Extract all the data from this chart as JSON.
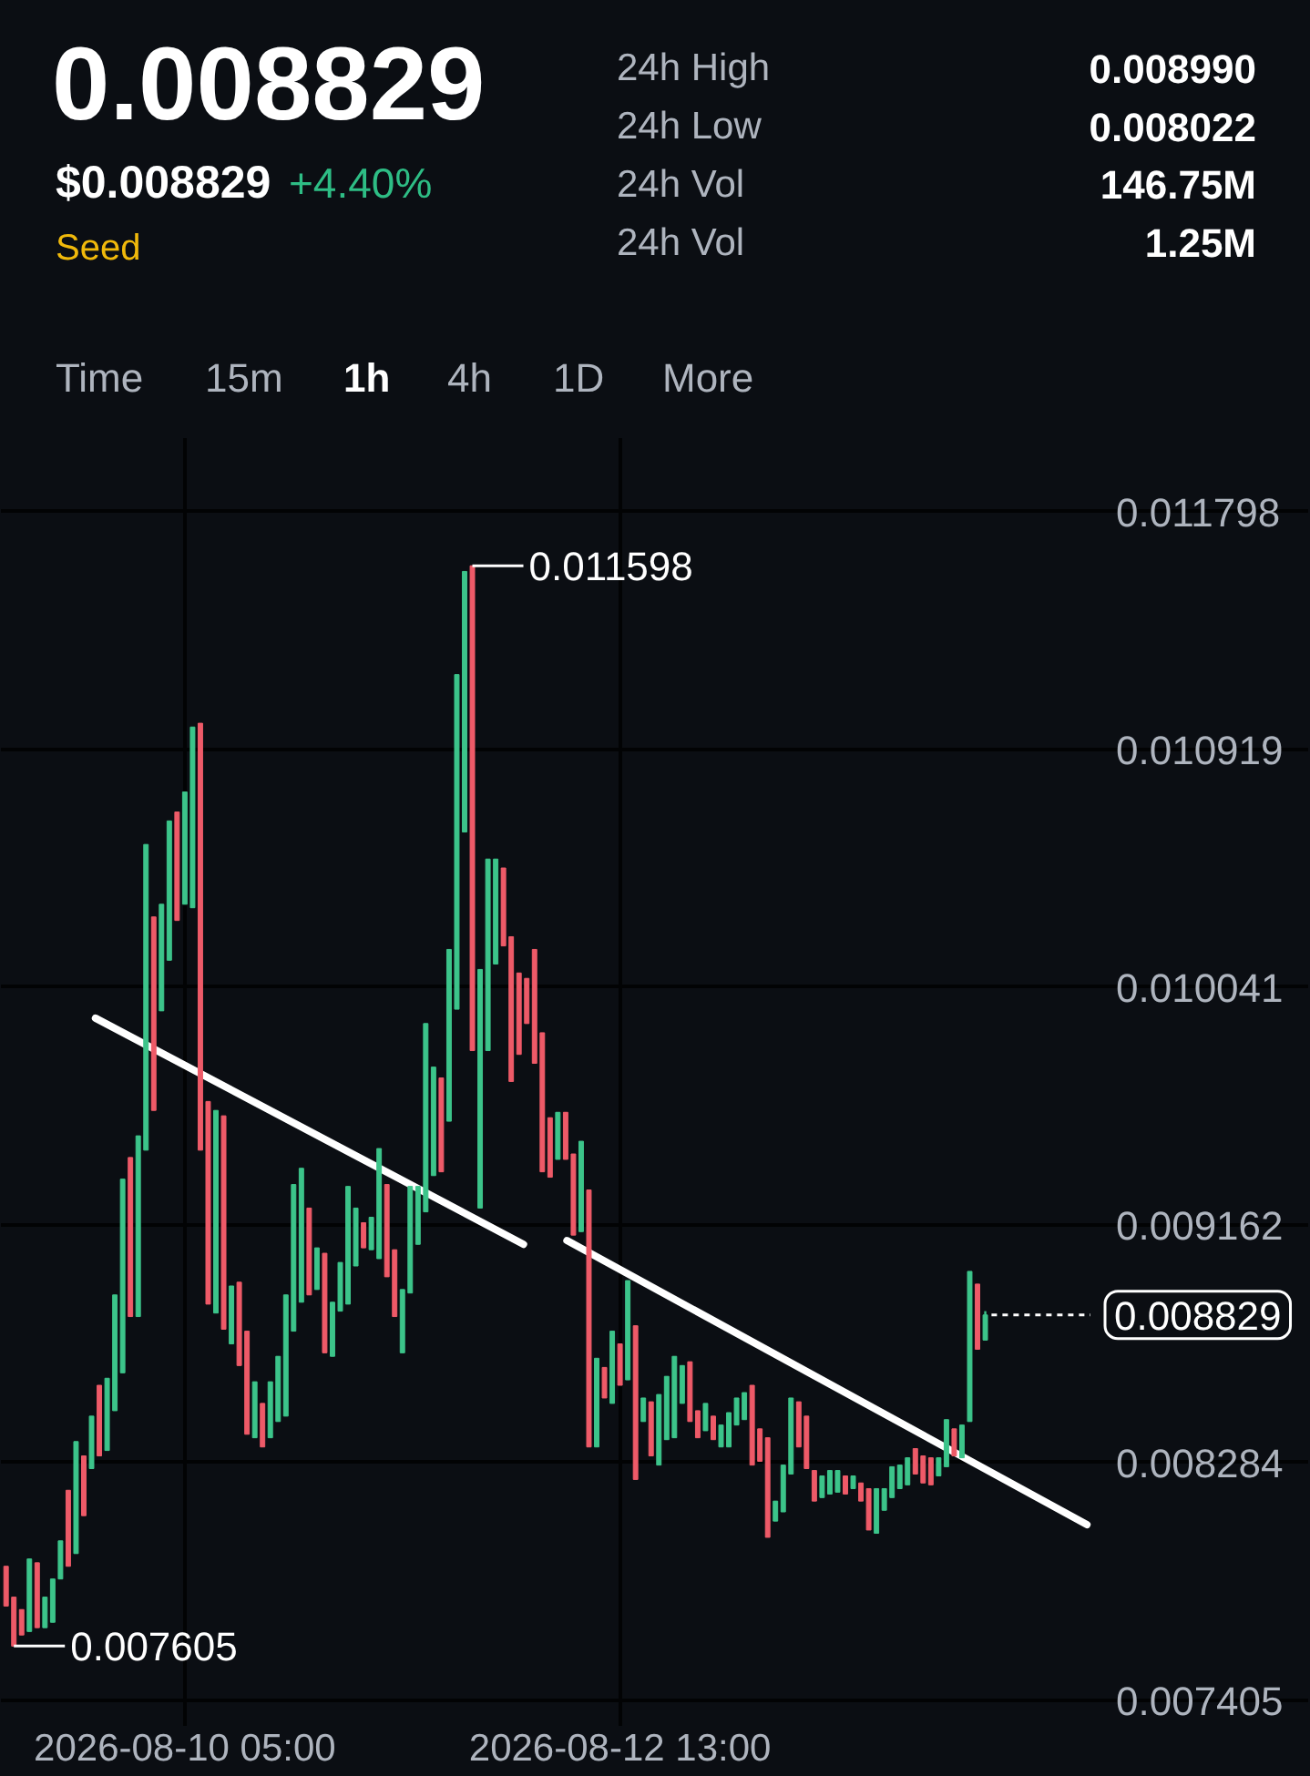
{
  "chart_data": {
    "type": "candlestick",
    "title": "0.008829",
    "annotations": [
      "$0.008829",
      "+4.40%",
      "Seed",
      "24h High",
      "0.008990",
      "24h Low",
      "0.008022",
      "24h Vol",
      "146.75M",
      "24h Vol",
      "1.25M",
      "Time",
      "15m",
      "1h",
      "4h",
      "1D",
      "More",
      {
        "text": "0.011598",
        "x": "2026-08-11T18:00",
        "y": 0.011598
      },
      {
        "text": "0.007605",
        "x": "2026-08-09T07:00",
        "y": 0.007605
      }
    ],
    "x": [
      "2026-08-09T06:00",
      "2026-08-09T07:00",
      "2026-08-09T08:00",
      "2026-08-09T09:00",
      "2026-08-09T10:00",
      "2026-08-09T11:00",
      "2026-08-09T12:00",
      "2026-08-09T13:00",
      "2026-08-09T14:00",
      "2026-08-09T15:00",
      "2026-08-09T16:00",
      "2026-08-09T17:00",
      "2026-08-09T18:00",
      "2026-08-09T19:00",
      "2026-08-09T20:00",
      "2026-08-09T21:00",
      "2026-08-09T22:00",
      "2026-08-09T23:00",
      "2026-08-10T00:00",
      "2026-08-10T01:00",
      "2026-08-10T02:00",
      "2026-08-10T03:00",
      "2026-08-10T04:00",
      "2026-08-10T05:00",
      "2026-08-10T06:00",
      "2026-08-10T07:00",
      "2026-08-10T08:00",
      "2026-08-10T09:00",
      "2026-08-10T10:00",
      "2026-08-10T11:00",
      "2026-08-10T12:00",
      "2026-08-10T13:00",
      "2026-08-10T14:00",
      "2026-08-10T15:00",
      "2026-08-10T16:00",
      "2026-08-10T17:00",
      "2026-08-10T18:00",
      "2026-08-10T19:00",
      "2026-08-10T20:00",
      "2026-08-10T21:00",
      "2026-08-10T22:00",
      "2026-08-10T23:00",
      "2026-08-11T00:00",
      "2026-08-11T01:00",
      "2026-08-11T02:00",
      "2026-08-11T03:00",
      "2026-08-11T04:00",
      "2026-08-11T05:00",
      "2026-08-11T06:00",
      "2026-08-11T07:00",
      "2026-08-11T08:00",
      "2026-08-11T09:00",
      "2026-08-11T10:00",
      "2026-08-11T11:00",
      "2026-08-11T12:00",
      "2026-08-11T13:00",
      "2026-08-11T14:00",
      "2026-08-11T15:00",
      "2026-08-11T16:00",
      "2026-08-11T17:00",
      "2026-08-11T18:00",
      "2026-08-11T19:00",
      "2026-08-11T20:00",
      "2026-08-11T21:00",
      "2026-08-11T22:00",
      "2026-08-11T23:00",
      "2026-08-12T00:00",
      "2026-08-12T01:00",
      "2026-08-12T02:00",
      "2026-08-12T03:00",
      "2026-08-12T04:00",
      "2026-08-12T05:00",
      "2026-08-12T06:00",
      "2026-08-12T07:00",
      "2026-08-12T08:00",
      "2026-08-12T09:00",
      "2026-08-12T10:00",
      "2026-08-12T11:00",
      "2026-08-12T12:00",
      "2026-08-12T13:00",
      "2026-08-12T14:00",
      "2026-08-12T15:00",
      "2026-08-12T16:00",
      "2026-08-12T17:00",
      "2026-08-12T18:00",
      "2026-08-12T19:00",
      "2026-08-12T20:00",
      "2026-08-12T21:00",
      "2026-08-12T22:00",
      "2026-08-12T23:00",
      "2026-08-13T00:00",
      "2026-08-13T01:00",
      "2026-08-13T02:00",
      "2026-08-13T03:00",
      "2026-08-13T04:00",
      "2026-08-13T05:00",
      "2026-08-13T06:00",
      "2026-08-13T07:00",
      "2026-08-13T08:00",
      "2026-08-13T09:00",
      "2026-08-13T10:00",
      "2026-08-13T11:00",
      "2026-08-13T12:00",
      "2026-08-13T13:00",
      "2026-08-13T14:00",
      "2026-08-13T15:00",
      "2026-08-13T16:00",
      "2026-08-13T17:00",
      "2026-08-13T18:00",
      "2026-08-13T19:00",
      "2026-08-13T20:00",
      "2026-08-13T21:00",
      "2026-08-13T22:00",
      "2026-08-13T23:00",
      "2026-08-14T00:00",
      "2026-08-14T01:00",
      "2026-08-14T02:00",
      "2026-08-14T03:00",
      "2026-08-14T04:00",
      "2026-08-14T05:00",
      "2026-08-14T06:00",
      "2026-08-14T07:00",
      "2026-08-14T08:00",
      "2026-08-14T09:00",
      "2026-08-14T10:00",
      "2026-08-14T11:00",
      "2026-08-14T12:00"
    ],
    "ohlc": [
      [
        0.0079,
        0.0079,
        0.007753,
        0.007753
      ],
      [
        0.007786,
        0.007786,
        0.007605,
        0.007605
      ],
      [
        0.00774,
        0.00774,
        0.007646,
        0.007646
      ],
      [
        0.007659,
        0.007927,
        0.007659,
        0.007927
      ],
      [
        0.007913,
        0.007913,
        0.007673,
        0.007673
      ],
      [
        0.007673,
        0.007786,
        0.007673,
        0.007786
      ],
      [
        0.007693,
        0.007853,
        0.007693,
        0.007853
      ],
      [
        0.007853,
        0.007994,
        0.007853,
        0.007994
      ],
      [
        0.008181,
        0.008181,
        0.0079,
        0.0079
      ],
      [
        0.007947,
        0.008361,
        0.007947,
        0.008361
      ],
      [
        0.008308,
        0.008308,
        0.008087,
        0.008087
      ],
      [
        0.008261,
        0.008455,
        0.008261,
        0.008455
      ],
      [
        0.008569,
        0.008569,
        0.008308,
        0.008308
      ],
      [
        0.008328,
        0.008595,
        0.008328,
        0.008595
      ],
      [
        0.008475,
        0.008903,
        0.008475,
        0.008903
      ],
      [
        0.008615,
        0.009331,
        0.008615,
        0.009331
      ],
      [
        0.009411,
        0.009411,
        0.008823,
        0.008823
      ],
      [
        0.008823,
        0.009491,
        0.008823,
        0.009491
      ],
      [
        0.009438,
        0.010568,
        0.009438,
        0.010568
      ],
      [
        0.0103,
        0.0103,
        0.009585,
        0.009585
      ],
      [
        0.009953,
        0.010347,
        0.009953,
        0.010347
      ],
      [
        0.01014,
        0.010655,
        0.01014,
        0.010655
      ],
      [
        0.010688,
        0.010688,
        0.010287,
        0.010287
      ],
      [
        0.010347,
        0.010762,
        0.010347,
        0.010762
      ],
      [
        0.010334,
        0.011002,
        0.010334,
        0.011002
      ],
      [
        0.011016,
        0.011016,
        0.009438,
        0.009438
      ],
      [
        0.009618,
        0.009618,
        0.008869,
        0.008869
      ],
      [
        0.008836,
        0.009585,
        0.008836,
        0.009585
      ],
      [
        0.009565,
        0.009565,
        0.008776,
        0.008776
      ],
      [
        0.008722,
        0.008936,
        0.008722,
        0.008936
      ],
      [
        0.00895,
        0.00895,
        0.008642,
        0.008642
      ],
      [
        0.008769,
        0.008769,
        0.008388,
        0.008388
      ],
      [
        0.008375,
        0.008582,
        0.008375,
        0.008582
      ],
      [
        0.008502,
        0.008502,
        0.008341,
        0.008341
      ],
      [
        0.008375,
        0.008582,
        0.008375,
        0.008582
      ],
      [
        0.008435,
        0.008676,
        0.008435,
        0.008676
      ],
      [
        0.008455,
        0.008903,
        0.008455,
        0.008903
      ],
      [
        0.008769,
        0.009311,
        0.008769,
        0.009311
      ],
      [
        0.008876,
        0.009371,
        0.008876,
        0.009371
      ],
      [
        0.009224,
        0.009224,
        0.008903,
        0.008903
      ],
      [
        0.008923,
        0.009077,
        0.008923,
        0.009077
      ],
      [
        0.009057,
        0.009057,
        0.008689,
        0.008689
      ],
      [
        0.008676,
        0.008876,
        0.008676,
        0.008876
      ],
      [
        0.008843,
        0.009023,
        0.008843,
        0.009023
      ],
      [
        0.008869,
        0.009304,
        0.008869,
        0.009304
      ],
      [
        0.00901,
        0.009224,
        0.00901,
        0.009224
      ],
      [
        0.00917,
        0.00917,
        0.009077,
        0.009077
      ],
      [
        0.00907,
        0.00919,
        0.00907,
        0.00919
      ],
      [
        0.009037,
        0.009444,
        0.009037,
        0.009444
      ],
      [
        0.009311,
        0.009311,
        0.00897,
        0.00897
      ],
      [
        0.00907,
        0.00907,
        0.008823,
        0.008823
      ],
      [
        0.008689,
        0.008923,
        0.008689,
        0.008923
      ],
      [
        0.00891,
        0.009304,
        0.00891,
        0.009304
      ],
      [
        0.00909,
        0.009304,
        0.00909,
        0.009304
      ],
      [
        0.00921,
        0.009906,
        0.00921,
        0.009906
      ],
      [
        0.009344,
        0.009745,
        0.009344,
        0.009745
      ],
      [
        0.009705,
        0.009705,
        0.009358,
        0.009358
      ],
      [
        0.009545,
        0.01018,
        0.009545,
        0.01018
      ],
      [
        0.009959,
        0.011196,
        0.009959,
        0.011196
      ],
      [
        0.010614,
        0.011577,
        0.010614,
        0.011577
      ],
      [
        0.011598,
        0.011598,
        0.009806,
        0.009806
      ],
      [
        0.009224,
        0.010106,
        0.009224,
        0.010106
      ],
      [
        0.009806,
        0.010514,
        0.009806,
        0.010514
      ],
      [
        0.010126,
        0.010514,
        0.010126,
        0.010514
      ],
      [
        0.010481,
        0.010481,
        0.010193,
        0.010193
      ],
      [
        0.010227,
        0.010227,
        0.009692,
        0.009692
      ],
      [
        0.010093,
        0.010093,
        0.009792,
        0.009792
      ],
      [
        0.010073,
        0.010073,
        0.009906,
        0.009906
      ],
      [
        0.01018,
        0.01018,
        0.009759,
        0.009759
      ],
      [
        0.009872,
        0.009872,
        0.009358,
        0.009358
      ],
      [
        0.009558,
        0.009558,
        0.009338,
        0.009338
      ],
      [
        0.009404,
        0.009578,
        0.009404,
        0.009578
      ],
      [
        0.009578,
        0.009578,
        0.009404,
        0.009404
      ],
      [
        0.009424,
        0.009424,
        0.009124,
        0.009124
      ],
      [
        0.009137,
        0.009471,
        0.009137,
        0.009471
      ],
      [
        0.009291,
        0.009291,
        0.008341,
        0.008341
      ],
      [
        0.008341,
        0.008669,
        0.008341,
        0.008669
      ],
      [
        0.008635,
        0.008635,
        0.008522,
        0.008522
      ],
      [
        0.008502,
        0.008769,
        0.008502,
        0.008769
      ],
      [
        0.008722,
        0.008722,
        0.008569,
        0.008569
      ],
      [
        0.008589,
        0.008956,
        0.008589,
        0.008956
      ],
      [
        0.008789,
        0.008789,
        0.008221,
        0.008221
      ],
      [
        0.008435,
        0.008522,
        0.008435,
        0.008522
      ],
      [
        0.008508,
        0.008508,
        0.008308,
        0.008308
      ],
      [
        0.008274,
        0.008535,
        0.008274,
        0.008535
      ],
      [
        0.008368,
        0.008602,
        0.008368,
        0.008602
      ],
      [
        0.008375,
        0.008676,
        0.008375,
        0.008676
      ],
      [
        0.008502,
        0.008642,
        0.008502,
        0.008642
      ],
      [
        0.008656,
        0.008656,
        0.008435,
        0.008435
      ],
      [
        0.008475,
        0.008475,
        0.008375,
        0.008375
      ],
      [
        0.008401,
        0.008502,
        0.008401,
        0.008502
      ],
      [
        0.008455,
        0.008455,
        0.008368,
        0.008368
      ],
      [
        0.008341,
        0.008422,
        0.008341,
        0.008422
      ],
      [
        0.008341,
        0.008468,
        0.008341,
        0.008468
      ],
      [
        0.008422,
        0.008522,
        0.008422,
        0.008522
      ],
      [
        0.008442,
        0.008542,
        0.008442,
        0.008542
      ],
      [
        0.008569,
        0.008569,
        0.008274,
        0.008274
      ],
      [
        0.008408,
        0.008408,
        0.008288,
        0.008288
      ],
      [
        0.008375,
        0.008375,
        0.008007,
        0.008007
      ],
      [
        0.008067,
        0.008141,
        0.008067,
        0.008141
      ],
      [
        0.008101,
        0.008274,
        0.008101,
        0.008274
      ],
      [
        0.008241,
        0.008522,
        0.008241,
        0.008522
      ],
      [
        0.008508,
        0.008508,
        0.008341,
        0.008341
      ],
      [
        0.008455,
        0.008455,
        0.008261,
        0.008261
      ],
      [
        0.008254,
        0.008254,
        0.008141,
        0.008141
      ],
      [
        0.008154,
        0.008234,
        0.008154,
        0.008234
      ],
      [
        0.008167,
        0.008254,
        0.008167,
        0.008254
      ],
      [
        0.008174,
        0.008254,
        0.008174,
        0.008254
      ],
      [
        0.008234,
        0.008234,
        0.008167,
        0.008167
      ],
      [
        0.008187,
        0.008234,
        0.008187,
        0.008234
      ],
      [
        0.008208,
        0.008208,
        0.008141,
        0.008141
      ],
      [
        0.008187,
        0.008187,
        0.008034,
        0.008034
      ],
      [
        0.008022,
        0.008187,
        0.008022,
        0.008187
      ],
      [
        0.008107,
        0.008187,
        0.008107,
        0.008187
      ],
      [
        0.008154,
        0.008268,
        0.008154,
        0.008268
      ],
      [
        0.008187,
        0.008274,
        0.008187,
        0.008274
      ],
      [
        0.008201,
        0.008301,
        0.008201,
        0.008301
      ],
      [
        0.008335,
        0.008335,
        0.008241,
        0.008241
      ],
      [
        0.008308,
        0.008308,
        0.008208,
        0.008208
      ],
      [
        0.008301,
        0.008301,
        0.008201,
        0.008201
      ],
      [
        0.008234,
        0.008301,
        0.008234,
        0.008301
      ],
      [
        0.008268,
        0.008442,
        0.008268,
        0.008442
      ],
      [
        0.008408,
        0.008408,
        0.008308,
        0.008308
      ],
      [
        0.008301,
        0.008422,
        0.008301,
        0.008422
      ],
      [
        0.008435,
        0.00899,
        0.008435,
        0.00899
      ],
      [
        0.008943,
        0.008943,
        0.008702,
        0.008702
      ],
      [
        0.008736,
        0.008843,
        0.008736,
        0.008829
      ]
    ],
    "colors": [
      "#ee5a68",
      "#ee5a68",
      "#ee5a68",
      "#3cc48a",
      "#ee5a68",
      "#3cc48a",
      "#3cc48a",
      "#3cc48a",
      "#ee5a68",
      "#3cc48a",
      "#ee5a68",
      "#3cc48a",
      "#ee5a68",
      "#3cc48a",
      "#3cc48a",
      "#3cc48a",
      "#ee5a68",
      "#3cc48a",
      "#3cc48a",
      "#ee5a68",
      "#3cc48a",
      "#3cc48a",
      "#ee5a68",
      "#3cc48a",
      "#3cc48a",
      "#ee5a68",
      "#ee5a68",
      "#3cc48a",
      "#ee5a68",
      "#3cc48a",
      "#ee5a68",
      "#ee5a68",
      "#3cc48a",
      "#ee5a68",
      "#3cc48a",
      "#3cc48a",
      "#3cc48a",
      "#3cc48a",
      "#3cc48a",
      "#ee5a68",
      "#3cc48a",
      "#ee5a68",
      "#3cc48a",
      "#3cc48a",
      "#3cc48a",
      "#3cc48a",
      "#ee5a68",
      "#3cc48a",
      "#3cc48a",
      "#ee5a68",
      "#ee5a68",
      "#3cc48a",
      "#3cc48a",
      "#3cc48a",
      "#3cc48a",
      "#3cc48a",
      "#ee5a68",
      "#3cc48a",
      "#3cc48a",
      "#3cc48a",
      "#ee5a68",
      "#3cc48a",
      "#3cc48a",
      "#3cc48a",
      "#ee5a68",
      "#ee5a68",
      "#ee5a68",
      "#ee5a68",
      "#ee5a68",
      "#ee5a68",
      "#ee5a68",
      "#3cc48a",
      "#ee5a68",
      "#ee5a68",
      "#3cc48a",
      "#ee5a68",
      "#3cc48a",
      "#ee5a68",
      "#3cc48a",
      "#ee5a68",
      "#3cc48a",
      "#ee5a68",
      "#3cc48a",
      "#ee5a68",
      "#3cc48a",
      "#3cc48a",
      "#3cc48a",
      "#3cc48a",
      "#ee5a68",
      "#ee5a68",
      "#3cc48a",
      "#ee5a68",
      "#3cc48a",
      "#3cc48a",
      "#3cc48a",
      "#3cc48a",
      "#ee5a68",
      "#ee5a68",
      "#ee5a68",
      "#3cc48a",
      "#3cc48a",
      "#3cc48a",
      "#ee5a68",
      "#ee5a68",
      "#ee5a68",
      "#3cc48a",
      "#3cc48a",
      "#3cc48a",
      "#ee5a68",
      "#3cc48a",
      "#ee5a68",
      "#ee5a68",
      "#3cc48a",
      "#3cc48a",
      "#3cc48a",
      "#3cc48a",
      "#3cc48a",
      "#ee5a68",
      "#ee5a68",
      "#ee5a68",
      "#3cc48a",
      "#3cc48a",
      "#ee5a68",
      "#3cc48a",
      "#3cc48a",
      "#ee5a68",
      "#3cc48a"
    ],
    "series": [
      {
        "type": "line",
        "color": "#ffffff",
        "x": [
          "2026-08-09T17:30",
          "2026-08-12T00:35"
        ],
        "values": [
          0.009926,
          0.00909
        ]
      },
      {
        "type": "line",
        "color": "#ffffff",
        "x": [
          "2026-08-12T06:10",
          "2026-08-15T01:05"
        ],
        "values": [
          0.009104,
          0.008054
        ]
      }
    ],
    "xlim": [
      "2026-08-09T05:20",
      "2026-08-16T05:40"
    ],
    "xticks": [
      {
        "value": "2026-08-10T05:00",
        "label": "2026-08-10 05:00"
      },
      {
        "value": "2026-08-12T13:00",
        "label": "2026-08-12 13:00"
      }
    ],
    "ylim": [
      0.00731,
      0.01207
    ],
    "yticks": [
      0.011798,
      0.010919,
      0.010041,
      0.009162,
      0.008284,
      0.007405
    ],
    "grid": true,
    "ref_lines": [
      {
        "axis": "y",
        "value": 0.008829,
        "label": "0.008829",
        "line_style": "dotted",
        "color": "#ffffff"
      }
    ]
  }
}
